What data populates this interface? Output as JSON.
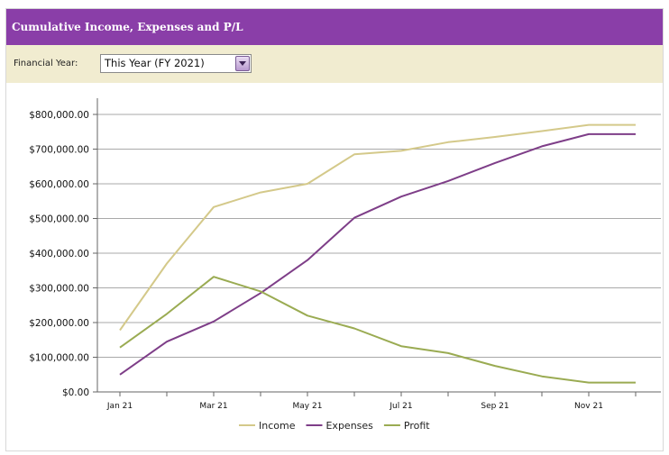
{
  "panel": {
    "title": "Cumulative Income, Expenses and P/L"
  },
  "filter": {
    "label": "Financial Year:",
    "selected": "This Year (FY 2021)"
  },
  "chart_data": {
    "type": "line",
    "title": "",
    "xlabel": "",
    "ylabel": "",
    "x": [
      "Jan 21",
      "Feb 21",
      "Mar 21",
      "Apr 21",
      "May 21",
      "Jun 21",
      "Jul 21",
      "Aug 21",
      "Sep 21",
      "Oct 21",
      "Nov 21",
      "Dec 21"
    ],
    "x_tick_labels": [
      "Jan 21",
      "Mar 21",
      "May 21",
      "Jul 21",
      "Sep 21",
      "Nov 21"
    ],
    "ylim": [
      0,
      800000
    ],
    "y_ticks": [
      "$0.00",
      "$100,000.00",
      "$200,000.00",
      "$300,000.00",
      "$400,000.00",
      "$500,000.00",
      "$600,000.00",
      "$700,000.00",
      "$800,000.00"
    ],
    "grid": true,
    "legend_position": "bottom",
    "series": [
      {
        "name": "Income",
        "color": "#d4c98a",
        "values": [
          178000,
          370000,
          533000,
          575000,
          600000,
          685000,
          695000,
          720000,
          735000,
          752000,
          770000,
          770000
        ]
      },
      {
        "name": "Expenses",
        "color": "#7e3e88",
        "values": [
          50000,
          145000,
          203000,
          285000,
          380000,
          502000,
          563000,
          608000,
          660000,
          708000,
          743000,
          743000
        ]
      },
      {
        "name": "Profit",
        "color": "#9aab52",
        "values": [
          128000,
          225000,
          332000,
          290000,
          220000,
          183000,
          132000,
          112000,
          75000,
          45000,
          27000,
          27000
        ]
      }
    ]
  }
}
